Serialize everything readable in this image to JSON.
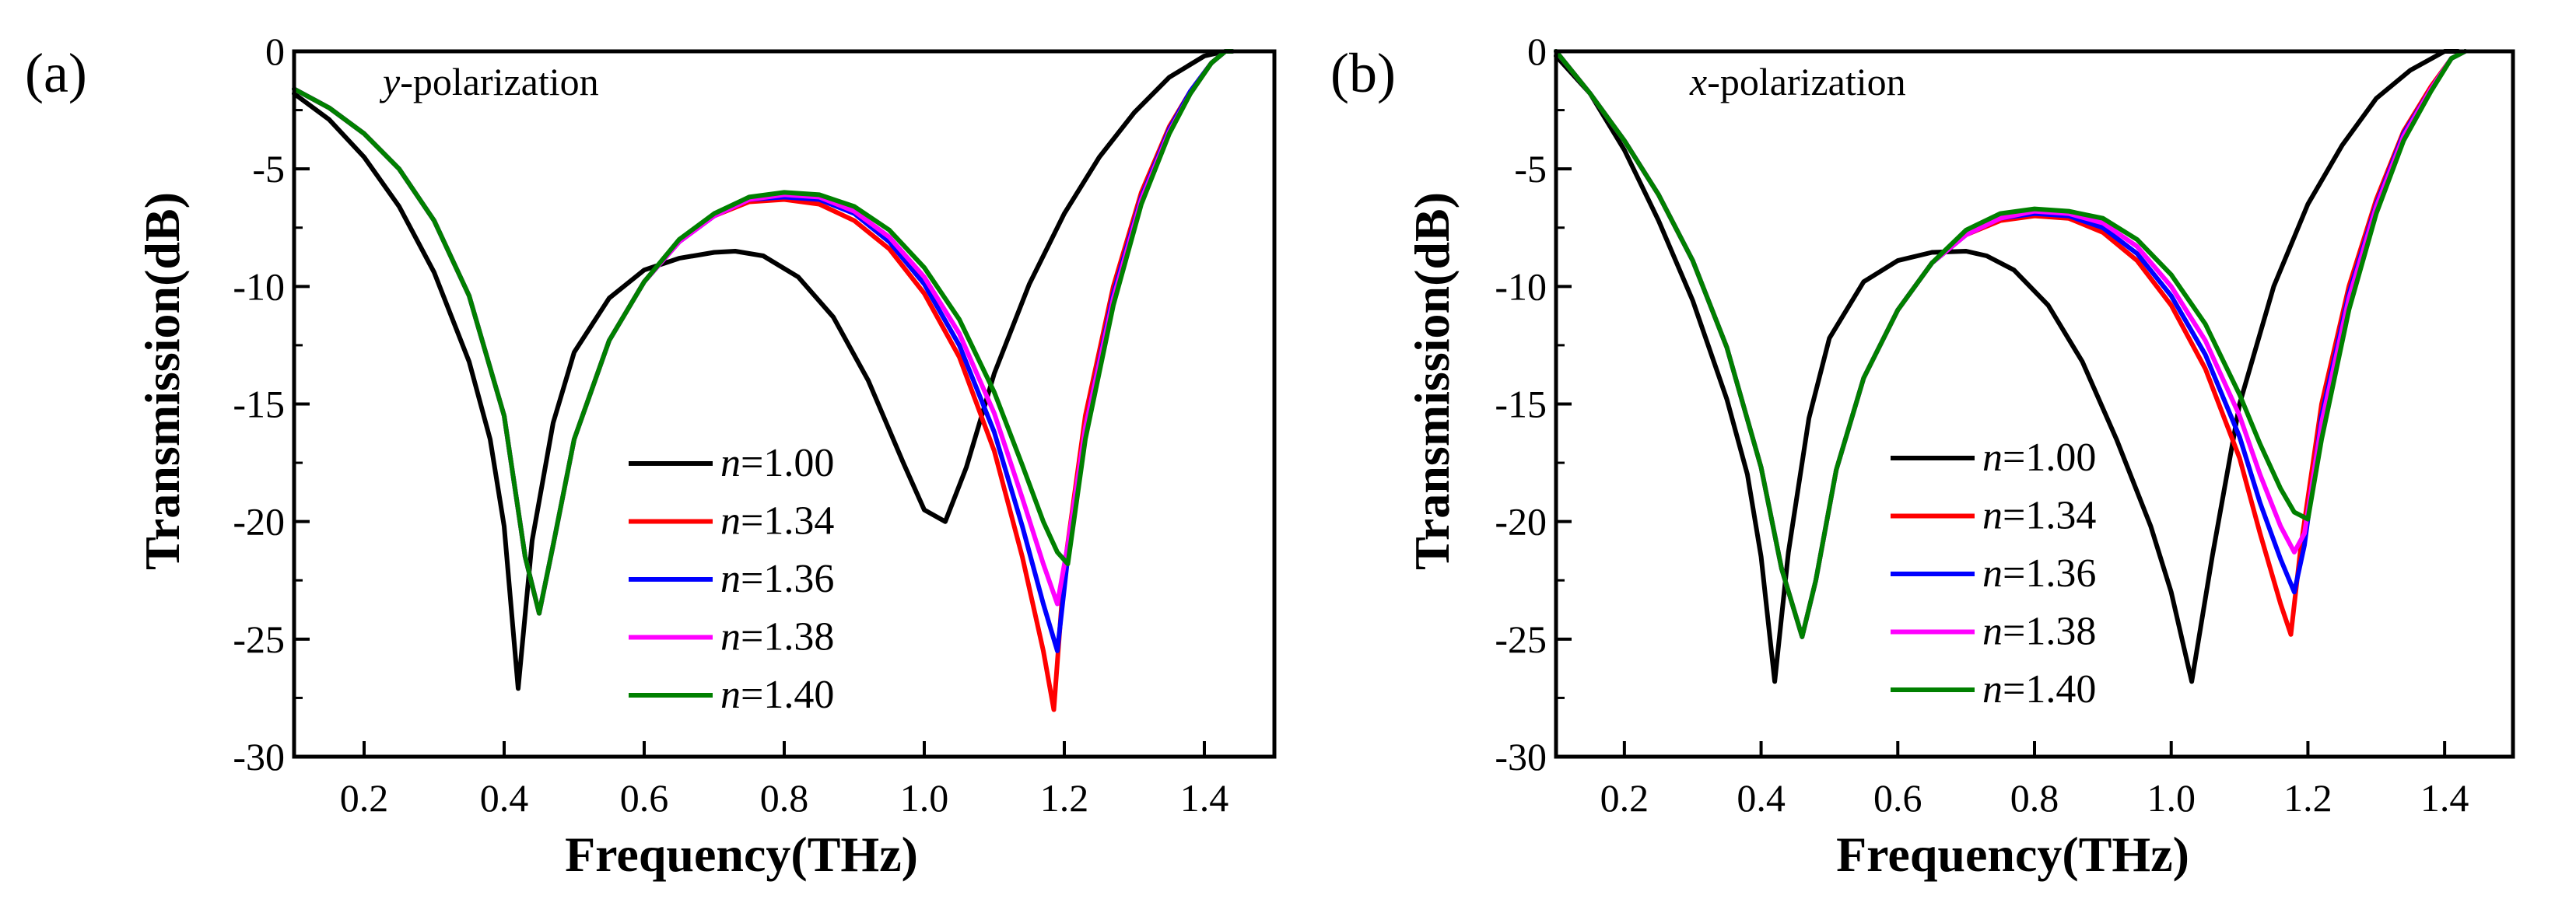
{
  "chart_data": [
    {
      "type": "line",
      "panel_label": "(a)",
      "annotation_italic": "y",
      "annotation_rest": "-polarization",
      "xlabel": "Frequency(THz)",
      "ylabel": "Transmission(dB)",
      "xlim": [
        0.1,
        1.5
      ],
      "ylim": [
        -30,
        0
      ],
      "xticks": [
        "0.2",
        "0.4",
        "0.6",
        "0.8",
        "1.0",
        "1.2",
        "1.4"
      ],
      "yticks": [
        "0",
        "-5",
        "-10",
        "-15",
        "-20",
        "-25",
        "-30"
      ],
      "legend_position": "lower-center",
      "series": [
        {
          "name_italic": "n",
          "name_rest": "=1.00",
          "color": "#000000",
          "x": [
            0.1,
            0.15,
            0.2,
            0.25,
            0.3,
            0.35,
            0.38,
            0.4,
            0.42,
            0.44,
            0.47,
            0.5,
            0.55,
            0.6,
            0.65,
            0.7,
            0.73,
            0.77,
            0.82,
            0.87,
            0.92,
            0.97,
            1.0,
            1.03,
            1.06,
            1.1,
            1.15,
            1.2,
            1.25,
            1.3,
            1.35,
            1.4,
            1.43,
            1.44
          ],
          "y": [
            -1.8,
            -2.9,
            -4.5,
            -6.6,
            -9.4,
            -13.2,
            -16.5,
            -20.2,
            -27.1,
            -20.8,
            -15.8,
            -12.8,
            -10.5,
            -9.3,
            -8.8,
            -8.55,
            -8.5,
            -8.7,
            -9.6,
            -11.3,
            -14.0,
            -17.5,
            -19.5,
            -20.0,
            -17.7,
            -13.7,
            -9.9,
            -6.9,
            -4.5,
            -2.6,
            -1.1,
            -0.2,
            0,
            0
          ]
        },
        {
          "name_italic": "n",
          "name_rest": "=1.34",
          "color": "#ff0000",
          "x": [
            0.1,
            0.15,
            0.2,
            0.25,
            0.3,
            0.35,
            0.4,
            0.43,
            0.45,
            0.47,
            0.5,
            0.55,
            0.6,
            0.65,
            0.7,
            0.75,
            0.8,
            0.85,
            0.9,
            0.95,
            1.0,
            1.05,
            1.1,
            1.14,
            1.17,
            1.185,
            1.2,
            1.23,
            1.27,
            1.31,
            1.35,
            1.38,
            1.41,
            1.43,
            1.44
          ],
          "y": [
            -1.6,
            -2.4,
            -3.5,
            -5.0,
            -7.2,
            -10.4,
            -15.5,
            -21.5,
            -23.9,
            -21.0,
            -16.5,
            -12.3,
            -9.8,
            -8.1,
            -7.0,
            -6.4,
            -6.3,
            -6.5,
            -7.2,
            -8.4,
            -10.3,
            -13.0,
            -17.0,
            -21.5,
            -25.5,
            -28.0,
            -22.0,
            -15.5,
            -10.0,
            -6.0,
            -3.2,
            -1.7,
            -0.5,
            0,
            0
          ]
        },
        {
          "name_italic": "n",
          "name_rest": "=1.36",
          "color": "#0000ff",
          "x": [
            0.1,
            0.15,
            0.2,
            0.25,
            0.3,
            0.35,
            0.4,
            0.43,
            0.45,
            0.47,
            0.5,
            0.55,
            0.6,
            0.65,
            0.7,
            0.75,
            0.8,
            0.85,
            0.9,
            0.95,
            1.0,
            1.05,
            1.1,
            1.14,
            1.17,
            1.19,
            1.205,
            1.23,
            1.27,
            1.31,
            1.35,
            1.38,
            1.41,
            1.43,
            1.44
          ],
          "y": [
            -1.6,
            -2.4,
            -3.5,
            -5.0,
            -7.2,
            -10.4,
            -15.5,
            -21.5,
            -23.9,
            -21.0,
            -16.5,
            -12.3,
            -9.8,
            -8.1,
            -7.0,
            -6.3,
            -6.2,
            -6.3,
            -6.9,
            -8.1,
            -9.9,
            -12.5,
            -16.2,
            -20.2,
            -23.5,
            -25.5,
            -21.5,
            -16.0,
            -10.3,
            -6.2,
            -3.3,
            -1.7,
            -0.5,
            0,
            0
          ]
        },
        {
          "name_italic": "n",
          "name_rest": "=1.38",
          "color": "#ff00ff",
          "x": [
            0.1,
            0.15,
            0.2,
            0.25,
            0.3,
            0.35,
            0.4,
            0.43,
            0.45,
            0.47,
            0.5,
            0.55,
            0.6,
            0.65,
            0.7,
            0.75,
            0.8,
            0.85,
            0.9,
            0.95,
            1.0,
            1.05,
            1.1,
            1.14,
            1.17,
            1.19,
            1.205,
            1.23,
            1.27,
            1.31,
            1.35,
            1.38,
            1.41,
            1.43,
            1.44
          ],
          "y": [
            -1.6,
            -2.4,
            -3.5,
            -5.0,
            -7.2,
            -10.4,
            -15.5,
            -21.5,
            -23.9,
            -21.0,
            -16.5,
            -12.3,
            -9.8,
            -8.1,
            -7.0,
            -6.3,
            -6.1,
            -6.2,
            -6.8,
            -7.9,
            -9.6,
            -12.0,
            -15.4,
            -19.0,
            -21.8,
            -23.5,
            -21.0,
            -16.0,
            -10.5,
            -6.3,
            -3.4,
            -1.8,
            -0.5,
            0,
            0
          ]
        },
        {
          "name_italic": "n",
          "name_rest": "=1.40",
          "color": "#008000",
          "x": [
            0.1,
            0.15,
            0.2,
            0.25,
            0.3,
            0.35,
            0.4,
            0.43,
            0.45,
            0.47,
            0.5,
            0.55,
            0.6,
            0.65,
            0.7,
            0.75,
            0.8,
            0.85,
            0.9,
            0.95,
            1.0,
            1.05,
            1.1,
            1.14,
            1.17,
            1.19,
            1.205,
            1.23,
            1.27,
            1.31,
            1.35,
            1.38,
            1.41,
            1.43,
            1.44
          ],
          "y": [
            -1.6,
            -2.4,
            -3.5,
            -5.0,
            -7.2,
            -10.4,
            -15.5,
            -21.5,
            -23.9,
            -21.0,
            -16.5,
            -12.3,
            -9.8,
            -8.0,
            -6.9,
            -6.2,
            -6.0,
            -6.1,
            -6.6,
            -7.6,
            -9.2,
            -11.4,
            -14.5,
            -17.6,
            -20.0,
            -21.3,
            -21.8,
            -16.5,
            -10.8,
            -6.5,
            -3.5,
            -1.8,
            -0.5,
            0,
            0
          ]
        }
      ]
    },
    {
      "type": "line",
      "panel_label": "(b)",
      "annotation_italic": "x",
      "annotation_rest": "-polarization",
      "xlabel": "Frequency(THz)",
      "ylabel": "Transmission(dB)",
      "xlim": [
        0.1,
        1.5
      ],
      "ylim": [
        -30,
        0
      ],
      "xticks": [
        "0.2",
        "0.4",
        "0.6",
        "0.8",
        "1.0",
        "1.2",
        "1.4"
      ],
      "yticks": [
        "0",
        "-5",
        "-10",
        "-15",
        "-20",
        "-25",
        "-30"
      ],
      "legend_position": "lower-center",
      "series": [
        {
          "name_italic": "n",
          "name_rest": "=1.00",
          "color": "#000000",
          "x": [
            0.1,
            0.15,
            0.2,
            0.25,
            0.3,
            0.35,
            0.38,
            0.4,
            0.42,
            0.44,
            0.47,
            0.5,
            0.55,
            0.6,
            0.65,
            0.7,
            0.73,
            0.77,
            0.82,
            0.87,
            0.92,
            0.97,
            1.0,
            1.03,
            1.06,
            1.1,
            1.15,
            1.2,
            1.25,
            1.3,
            1.35,
            1.4,
            1.42
          ],
          "y": [
            -0.2,
            -1.8,
            -4.2,
            -7.2,
            -10.6,
            -14.8,
            -18.0,
            -21.5,
            -26.8,
            -21.3,
            -15.6,
            -12.2,
            -9.8,
            -8.9,
            -8.55,
            -8.5,
            -8.7,
            -9.3,
            -10.8,
            -13.2,
            -16.5,
            -20.2,
            -23.0,
            -26.8,
            -21.5,
            -15.0,
            -10.0,
            -6.5,
            -4.0,
            -2.0,
            -0.8,
            0,
            0
          ]
        },
        {
          "name_italic": "n",
          "name_rest": "=1.34",
          "color": "#ff0000",
          "x": [
            0.1,
            0.15,
            0.2,
            0.25,
            0.3,
            0.35,
            0.4,
            0.43,
            0.46,
            0.48,
            0.51,
            0.55,
            0.6,
            0.65,
            0.7,
            0.75,
            0.8,
            0.85,
            0.9,
            0.95,
            1.0,
            1.05,
            1.1,
            1.13,
            1.16,
            1.175,
            1.19,
            1.22,
            1.26,
            1.3,
            1.34,
            1.38,
            1.41,
            1.43
          ],
          "y": [
            0,
            -1.8,
            -3.8,
            -6.1,
            -8.9,
            -12.6,
            -17.7,
            -22.0,
            -24.9,
            -22.5,
            -17.8,
            -13.9,
            -11.0,
            -9.0,
            -7.8,
            -7.2,
            -7.0,
            -7.1,
            -7.7,
            -8.9,
            -10.8,
            -13.5,
            -17.3,
            -20.5,
            -23.5,
            -24.8,
            -21.0,
            -15.0,
            -10.0,
            -6.3,
            -3.4,
            -1.5,
            -0.3,
            0
          ]
        },
        {
          "name_italic": "n",
          "name_rest": "=1.36",
          "color": "#0000ff",
          "x": [
            0.1,
            0.15,
            0.2,
            0.25,
            0.3,
            0.35,
            0.4,
            0.43,
            0.46,
            0.48,
            0.51,
            0.55,
            0.6,
            0.65,
            0.7,
            0.75,
            0.8,
            0.85,
            0.9,
            0.95,
            1.0,
            1.05,
            1.1,
            1.13,
            1.16,
            1.18,
            1.195,
            1.22,
            1.26,
            1.3,
            1.34,
            1.38,
            1.41,
            1.43
          ],
          "y": [
            0,
            -1.8,
            -3.8,
            -6.1,
            -8.9,
            -12.6,
            -17.7,
            -22.0,
            -24.9,
            -22.5,
            -17.8,
            -13.9,
            -11.0,
            -9.0,
            -7.8,
            -7.1,
            -6.9,
            -7.0,
            -7.5,
            -8.6,
            -10.4,
            -12.9,
            -16.4,
            -19.2,
            -21.6,
            -23.0,
            -21.0,
            -15.5,
            -10.3,
            -6.5,
            -3.5,
            -1.6,
            -0.3,
            0
          ]
        },
        {
          "name_italic": "n",
          "name_rest": "=1.38",
          "color": "#ff00ff",
          "x": [
            0.1,
            0.15,
            0.2,
            0.25,
            0.3,
            0.35,
            0.4,
            0.43,
            0.46,
            0.48,
            0.51,
            0.55,
            0.6,
            0.65,
            0.7,
            0.75,
            0.8,
            0.85,
            0.9,
            0.95,
            1.0,
            1.05,
            1.1,
            1.13,
            1.16,
            1.18,
            1.195,
            1.22,
            1.26,
            1.3,
            1.34,
            1.38,
            1.41,
            1.43
          ],
          "y": [
            0,
            -1.8,
            -3.8,
            -6.1,
            -8.9,
            -12.6,
            -17.7,
            -22.0,
            -24.9,
            -22.5,
            -17.8,
            -13.9,
            -11.0,
            -9.0,
            -7.8,
            -7.1,
            -6.8,
            -6.9,
            -7.3,
            -8.3,
            -10.0,
            -12.3,
            -15.5,
            -18.0,
            -20.2,
            -21.3,
            -20.5,
            -15.8,
            -10.5,
            -6.6,
            -3.6,
            -1.6,
            -0.3,
            0
          ]
        },
        {
          "name_italic": "n",
          "name_rest": "=1.40",
          "color": "#008000",
          "x": [
            0.1,
            0.15,
            0.2,
            0.25,
            0.3,
            0.35,
            0.4,
            0.43,
            0.46,
            0.48,
            0.51,
            0.55,
            0.6,
            0.65,
            0.7,
            0.75,
            0.8,
            0.85,
            0.9,
            0.95,
            1.0,
            1.05,
            1.1,
            1.13,
            1.16,
            1.18,
            1.2,
            1.22,
            1.26,
            1.3,
            1.34,
            1.38,
            1.41,
            1.43
          ],
          "y": [
            0,
            -1.8,
            -3.8,
            -6.1,
            -8.9,
            -12.6,
            -17.7,
            -22.0,
            -24.9,
            -22.5,
            -17.8,
            -13.9,
            -11.0,
            -9.0,
            -7.6,
            -6.9,
            -6.7,
            -6.8,
            -7.1,
            -8.0,
            -9.5,
            -11.6,
            -14.6,
            -16.7,
            -18.6,
            -19.6,
            -19.9,
            -16.5,
            -11.0,
            -6.9,
            -3.8,
            -1.7,
            -0.3,
            0
          ]
        }
      ]
    }
  ]
}
